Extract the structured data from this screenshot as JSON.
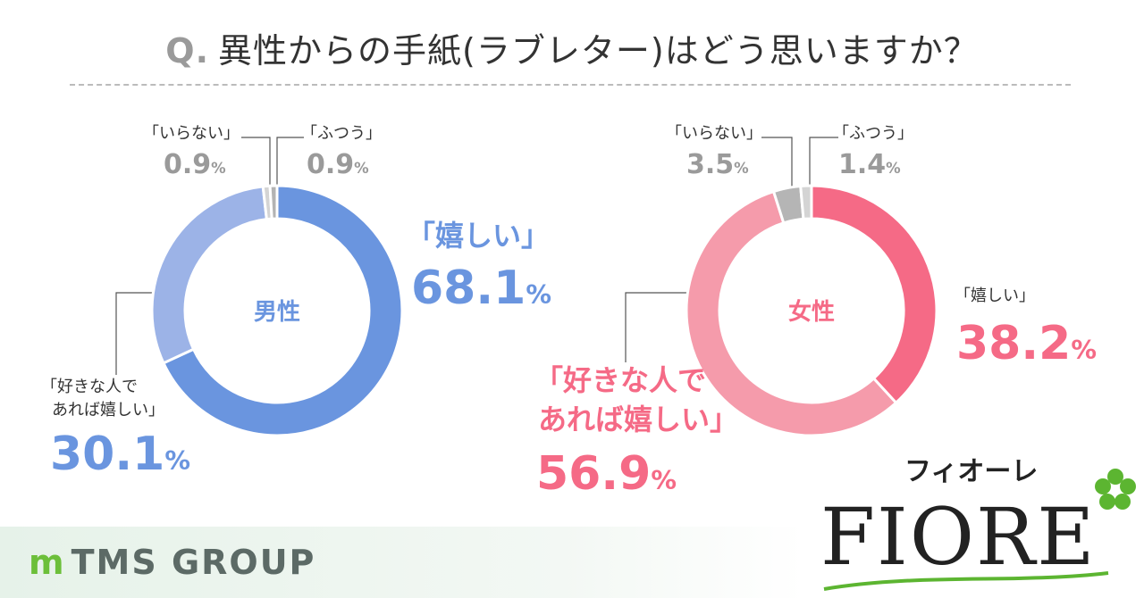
{
  "title": {
    "q": "Q.",
    "text": "異性からの手紙(ラブレター)はどう思いますか？"
  },
  "chart_data": [
    {
      "type": "pie",
      "variant": "donut",
      "center_label": "男性",
      "categories": [
        "「嬉しい」",
        "「好きな人であれば嬉しい」",
        "「いらない」",
        "「ふつう」"
      ],
      "values": [
        68.1,
        30.1,
        0.9,
        0.9
      ],
      "colors": [
        "#6a95df",
        "#9cb3e7",
        "#d4d4d4",
        "#b3b3b3"
      ],
      "value_labels": [
        "68.1%",
        "30.1%",
        "0.9%",
        "0.9%"
      ]
    },
    {
      "type": "pie",
      "variant": "donut",
      "center_label": "女性",
      "categories": [
        "「嬉しい」",
        "「好きな人であれば嬉しい」",
        "「いらない」",
        "「ふつう」"
      ],
      "values": [
        38.2,
        56.9,
        3.5,
        1.4
      ],
      "colors": [
        "#f56a86",
        "#f59bab",
        "#b5b5b5",
        "#d4d4d4"
      ],
      "value_labels": [
        "38.2%",
        "56.9%",
        "3.5%",
        "1.4%"
      ]
    }
  ],
  "labels": {
    "men": {
      "ureshii": "「嬉しい」",
      "suki1": "「好きな人で",
      "suki2": "あれば嬉しい」",
      "iranai": "「いらない」",
      "futsuu": "「ふつう」",
      "p_ureshii": "68.1",
      "p_suki": "30.1",
      "p_iranai": "0.9",
      "p_futsuu": "0.9"
    },
    "women": {
      "ureshii": "「嬉しい」",
      "suki1": "「好きな人で",
      "suki2": "あれば嬉しい」",
      "iranai": "「いらない」",
      "futsuu": "「ふつう」",
      "p_ureshii": "38.2",
      "p_suki": "56.9",
      "p_iranai": "3.5",
      "p_futsuu": "1.4"
    },
    "pct": "%"
  },
  "footer": {
    "group": "TMS GROUP",
    "logo_kana": "フィオーレ",
    "logo": "FIORE"
  }
}
